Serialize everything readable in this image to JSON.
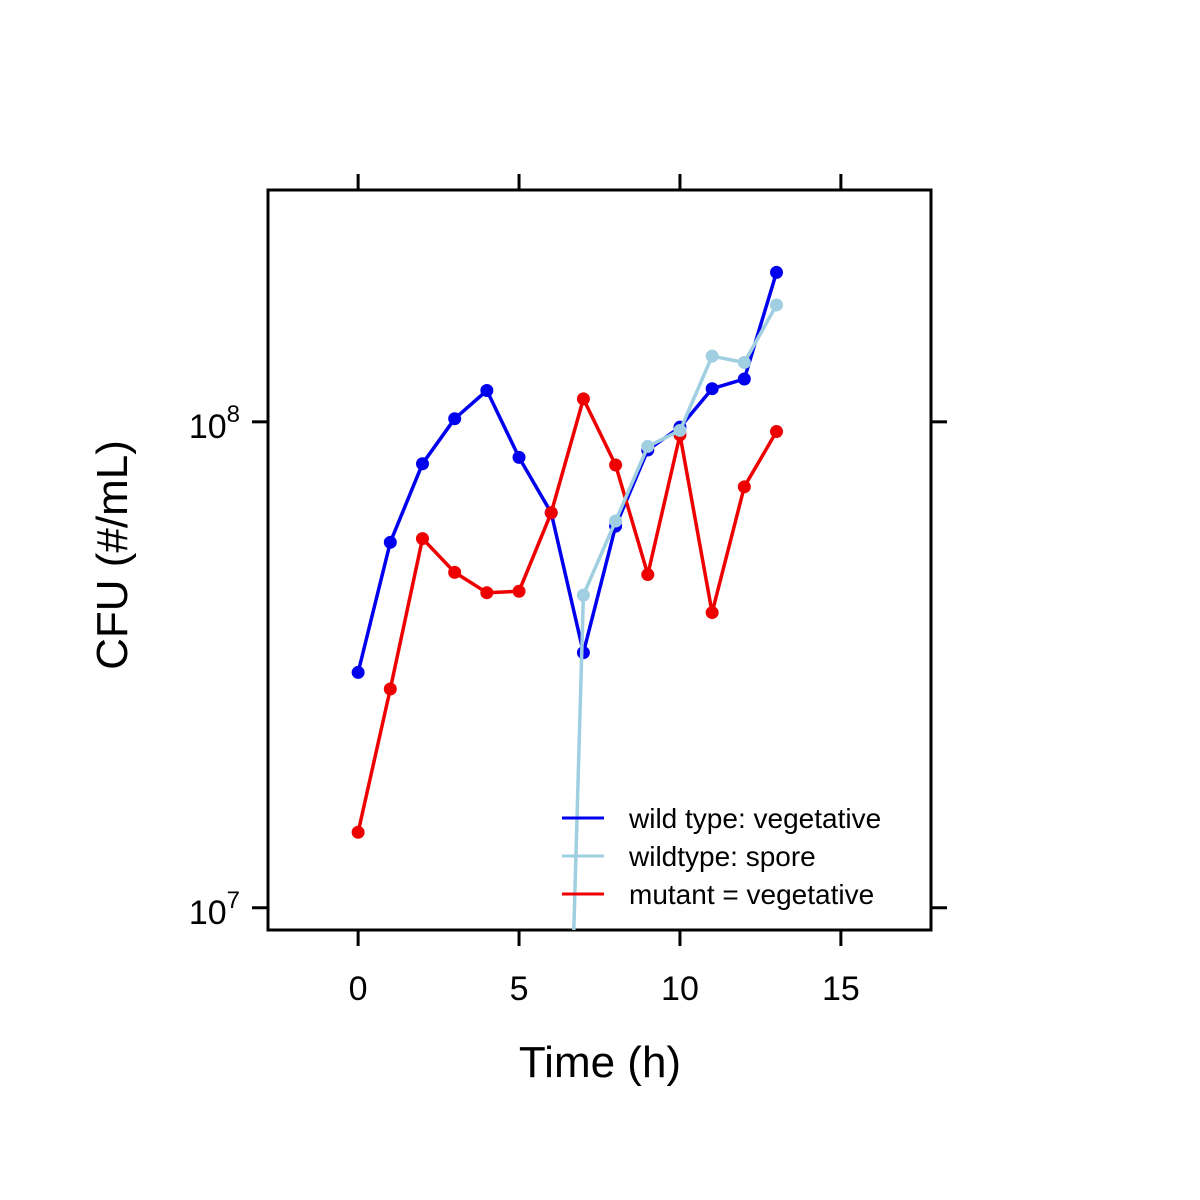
{
  "chart_data": {
    "type": "line",
    "title": "",
    "xlabel": "Time (h)",
    "ylabel": "CFU (#/mL)",
    "xlim": [
      -2.8,
      17.8
    ],
    "ylim": [
      9000000,
      300000000
    ],
    "y_scale": "log",
    "x_ticks": [
      0,
      5,
      10,
      15
    ],
    "x_tick_labels": [
      "0",
      "5",
      "10",
      "15"
    ],
    "y_ticks": [
      {
        "value": 10000000,
        "base": "10",
        "exponent": "7"
      },
      {
        "value": 100000000,
        "base": "10",
        "exponent": "8"
      }
    ],
    "grid": false,
    "legend": {
      "position": "bottom-right"
    },
    "series": [
      {
        "name": "wild type: vegetative",
        "color": "#0000EE",
        "x": [
          0,
          1,
          2,
          3,
          4,
          5,
          6,
          7,
          8,
          9,
          10,
          11,
          12,
          13
        ],
        "y": [
          30500000,
          56500000,
          82000000,
          101500000,
          116000000,
          84500000,
          65000000,
          33500000,
          61000000,
          87500000,
          97500000,
          117000000,
          122500000,
          203000000
        ]
      },
      {
        "name": "wildtype: spore",
        "color": "#9FCFE0",
        "x": [
          6.7,
          7,
          8,
          9,
          10,
          11,
          12,
          13
        ],
        "y": [
          9000000,
          44000000,
          62500000,
          89000000,
          96000000,
          136500000,
          132500000,
          174000000
        ]
      },
      {
        "name": "mutant = vegetative",
        "color": "#EE0000",
        "x": [
          0,
          1,
          2,
          3,
          4,
          5,
          6,
          7,
          8,
          9,
          10,
          11,
          12,
          13
        ],
        "y": [
          14300000,
          28200000,
          57500000,
          49000000,
          44500000,
          44800000,
          65000000,
          111500000,
          81500000,
          48500000,
          94000000,
          40500000,
          73500000,
          95500000
        ]
      }
    ]
  }
}
